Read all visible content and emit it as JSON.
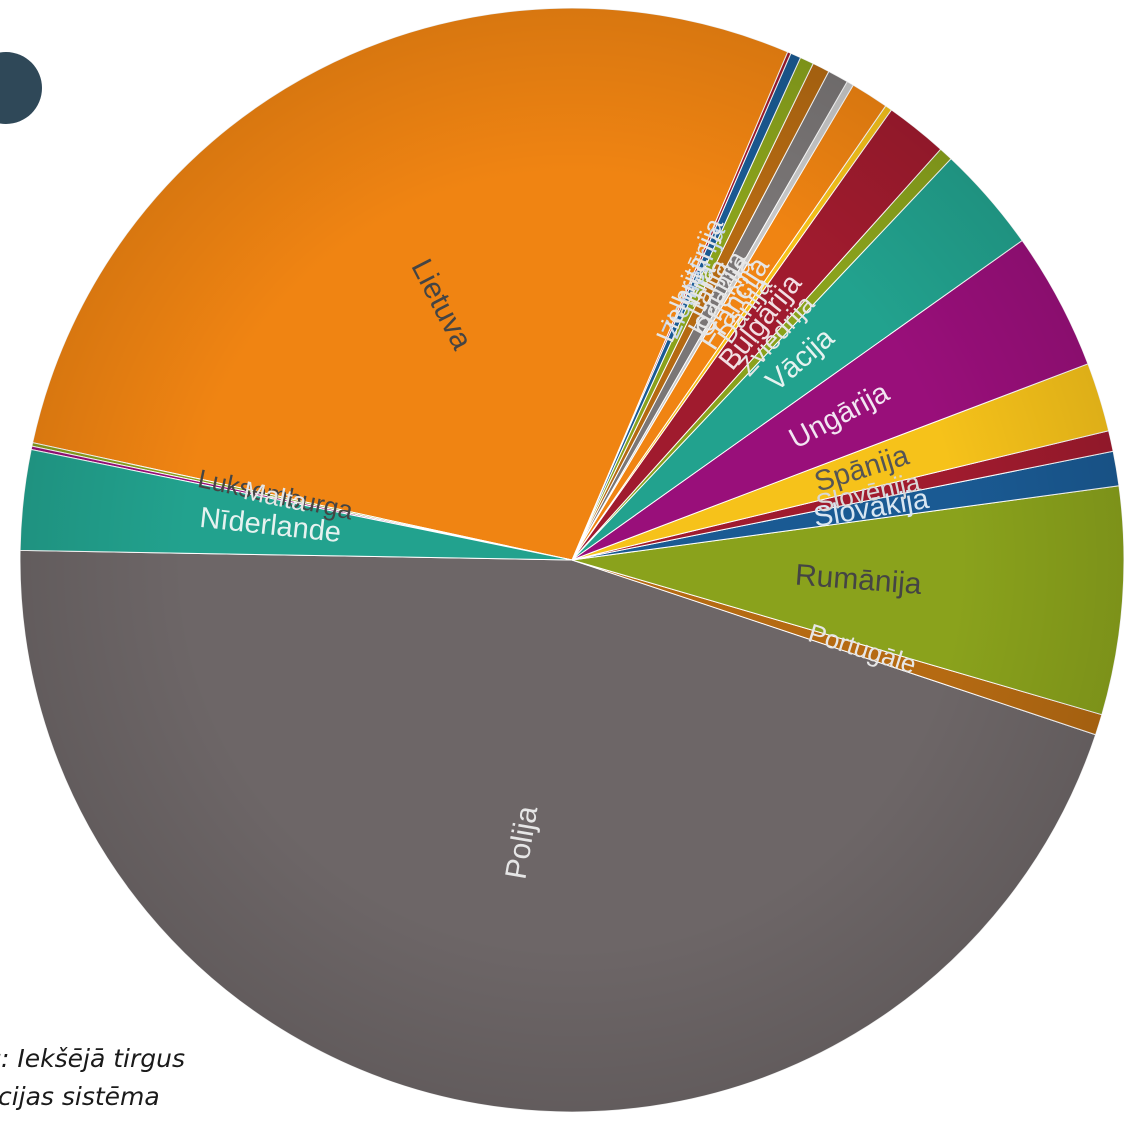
{
  "source": {
    "line1": "s: Iekšējā tirgus",
    "line2": "rmācijas sistēma"
  },
  "colors": {
    "accent_dot": "#2f4858"
  },
  "chart_data": {
    "type": "pie",
    "title": "",
    "start_angle_deg": 179,
    "direction": "counterclockwise",
    "slices": [
      {
        "label": "Polija",
        "value": 44.7,
        "color": "#6d6667",
        "label_color": "#e6e6e6"
      },
      {
        "label": "Portugāle",
        "value": 0.6,
        "color": "#b56a12",
        "label_color": "#e6e6e6"
      },
      {
        "label": "Rumānija",
        "value": 6.6,
        "color": "#8aa21c",
        "label_color": "#444444"
      },
      {
        "label": "Slovākija",
        "value": 1.0,
        "color": "#1a5a93",
        "label_color": "#d8e6f2"
      },
      {
        "label": "Slovēnija",
        "value": 0.6,
        "color": "#a01b2e",
        "label_color": "#d8d8d8"
      },
      {
        "label": "Spānija",
        "value": 2.0,
        "color": "#f6c21a",
        "label_color": "#555555"
      },
      {
        "label": "Ungārija",
        "value": 4.0,
        "color": "#990f7a",
        "label_color": "#f2e6f2"
      },
      {
        "label": "Vācija",
        "value": 3.1,
        "color": "#22a28e",
        "label_color": "#e6f2f0"
      },
      {
        "label": "Zviedrija",
        "value": 0.4,
        "color": "#8aa21c",
        "label_color": "#e6e6e6"
      },
      {
        "label": "Bulgārija",
        "value": 1.8,
        "color": "#a01b2e",
        "label_color": "#f2dfe3"
      },
      {
        "label": "Dānija",
        "value": 0.2,
        "color": "#f6c21a",
        "label_color": "#e6e6e6"
      },
      {
        "label": "Francija",
        "value": 1.1,
        "color": "#f08412",
        "label_color": "#e6e6e6"
      },
      {
        "label": "Grieķija",
        "value": 0.2,
        "color": "#c9c9c9",
        "label_color": "#e6e6e6"
      },
      {
        "label": "Igaunija",
        "value": 0.6,
        "color": "#7a7676",
        "label_color": "#e6e6e6"
      },
      {
        "label": "Itālija",
        "value": 0.5,
        "color": "#b56a12",
        "label_color": "#e6e6e6"
      },
      {
        "label": "Īrija",
        "value": 0.4,
        "color": "#8aa21c",
        "label_color": "#e6e6e6"
      },
      {
        "label": "Ziemeļīrija",
        "value": 0.3,
        "color": "#1a5a93",
        "label_color": "#c8d9ee"
      },
      {
        "label": "Lielbritānija",
        "value": 0.1,
        "color": "#a01b2e",
        "label_color": "#e6e6e6"
      },
      {
        "label": "Lietuva",
        "value": 27.7,
        "color": "#f08412",
        "label_color": "#444444"
      },
      {
        "label": "Luksemburga",
        "value": 0.1,
        "color": "#8aa21c",
        "label_color": "#444444"
      },
      {
        "label": "Malta",
        "value": 0.1,
        "color": "#990f7a",
        "label_color": "#e6e6e6"
      },
      {
        "label": "Nīderlande",
        "value": 2.9,
        "color": "#22a28e",
        "label_color": "#e6f2f0"
      }
    ]
  }
}
